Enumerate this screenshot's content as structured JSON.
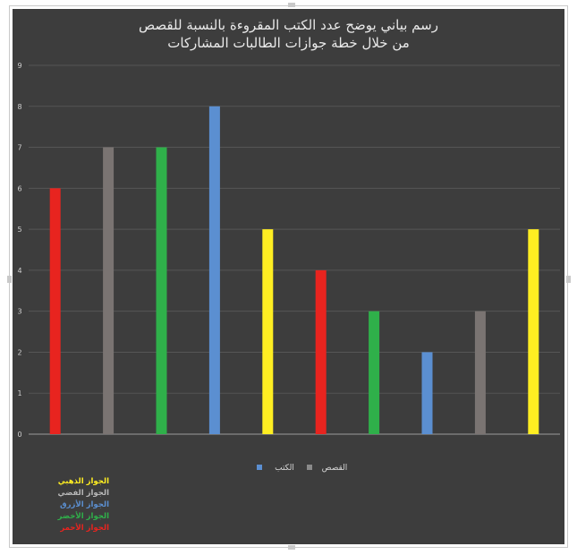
{
  "chart_data": {
    "type": "bar",
    "title_line1": "رسم بياني يوضح عدد الكتب المقروءة بالنسبة للقصص",
    "title_line2": "من خلال خطة جوازات الطالبات المشاركات",
    "ylim": [
      0,
      9
    ],
    "yticks": [
      "0",
      "1",
      "2",
      "3",
      "4",
      "5",
      "6",
      "7",
      "8",
      "9"
    ],
    "grid": true,
    "bars": [
      {
        "value": 6,
        "color": "#e8241f",
        "group": "قصص"
      },
      {
        "value": 7,
        "color": "#7a7472",
        "group": "قصص"
      },
      {
        "value": 7,
        "color": "#2fb04a",
        "group": "قصص"
      },
      {
        "value": 8,
        "color": "#5b8fd1",
        "group": "قصص"
      },
      {
        "value": 5,
        "color": "#ffee22",
        "group": "قصص"
      },
      {
        "value": 4,
        "color": "#e8241f",
        "group": "كتب"
      },
      {
        "value": 3,
        "color": "#2fb04a",
        "group": "كتب"
      },
      {
        "value": 2,
        "color": "#5b8fd1",
        "group": "كتب"
      },
      {
        "value": 3,
        "color": "#7a7472",
        "group": "كتب"
      },
      {
        "value": 5,
        "color": "#ffee22",
        "group": "كتب"
      }
    ],
    "legend": [
      {
        "label": "القصص",
        "color": "#8a8a8a"
      },
      {
        "label": "الكتب",
        "color": "#5b8fd1"
      }
    ],
    "legend_placement": "bottom-center",
    "side_legend": [
      {
        "label": "الجواز الذهبي",
        "color": "#ffee22"
      },
      {
        "label": "الجواز الفضي",
        "color": "#b8b8b8"
      },
      {
        "label": "الجواز الأزرق",
        "color": "#5b8fd1"
      },
      {
        "label": "الجواز الأخضر",
        "color": "#2fb04a"
      },
      {
        "label": "الجواز الأحمر",
        "color": "#e8241f"
      }
    ]
  }
}
